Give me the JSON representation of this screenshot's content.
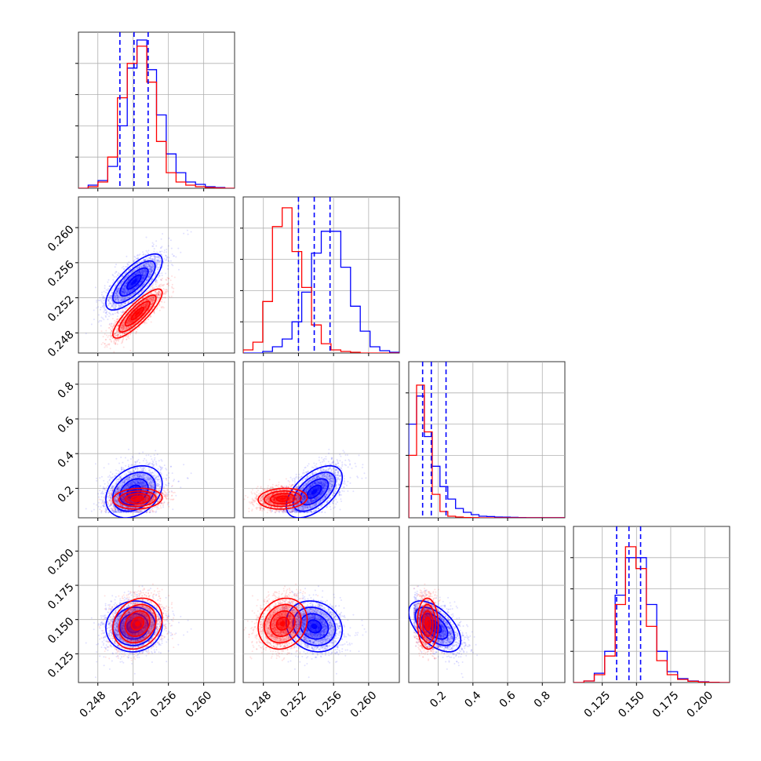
{
  "colors": {
    "blue": "#0000ff",
    "red": "#ff0000",
    "grid": "#b0b0b0",
    "frame": "#333333"
  },
  "chart_data": {
    "type": "corner",
    "grid": true,
    "variables": [
      {
        "range": [
          0.2458,
          0.2635
        ],
        "ticks": [
          0.248,
          0.252,
          0.256,
          0.26
        ],
        "tick_labels": [
          "0.248",
          "0.252",
          "0.256",
          "0.260"
        ]
      },
      {
        "range": [
          0.2457,
          0.2635
        ],
        "ticks": [
          0.248,
          0.252,
          0.256,
          0.26
        ],
        "tick_labels": [
          "0.248",
          "0.252",
          "0.256",
          "0.260"
        ]
      },
      {
        "range": [
          0.03,
          0.93
        ],
        "ticks": [
          0.2,
          0.4,
          0.6,
          0.8
        ],
        "tick_labels": [
          "0.2",
          "0.4",
          "0.6",
          "0.8"
        ]
      },
      {
        "range": [
          0.104,
          0.218
        ],
        "ticks": [
          0.125,
          0.15,
          0.175,
          0.2
        ],
        "tick_labels": [
          "0.125",
          "0.150",
          "0.175",
          "0.200"
        ]
      }
    ],
    "series": [
      {
        "color": "blue",
        "mean": [
          0.2521,
          0.2538,
          0.18,
          0.145
        ],
        "sd": [
          0.0016,
          0.0016,
          0.075,
          0.0093
        ],
        "quantiles": [
          [
            0.2505,
            0.2521,
            0.2537
          ],
          [
            0.252,
            0.2538,
            0.2556
          ],
          [
            0.11,
            0.16,
            0.245
          ],
          [
            0.1355,
            0.1445,
            0.153
          ]
        ],
        "correlations": [
          [
            1,
            0.75,
            0.3,
            0.05
          ],
          [
            0.75,
            1,
            0.55,
            -0.15
          ],
          [
            0.3,
            0.55,
            1,
            -0.55
          ],
          [
            0.05,
            -0.15,
            -0.55,
            1
          ]
        ],
        "histograms": [
          [
            0,
            0.02,
            0.05,
            0.14,
            0.4,
            0.77,
            0.95,
            0.76,
            0.47,
            0.22,
            0.1,
            0.04,
            0.025,
            0.01,
            0.005,
            0
          ],
          [
            0,
            0,
            0.01,
            0.04,
            0.09,
            0.2,
            0.39,
            0.64,
            0.78,
            0.78,
            0.55,
            0.3,
            0.14,
            0.04,
            0.015,
            0.005
          ],
          [
            0.6,
            0.78,
            0.52,
            0.33,
            0.2,
            0.12,
            0.06,
            0.035,
            0.02,
            0.01,
            0.008,
            0.005,
            0.004,
            0.003,
            0.002,
            0.001,
            0.001,
            0.001,
            0.001,
            0.001
          ],
          [
            0,
            0.01,
            0.06,
            0.2,
            0.56,
            0.8,
            0.8,
            0.5,
            0.2,
            0.07,
            0.025,
            0.01,
            0.005,
            0.002,
            0
          ]
        ]
      },
      {
        "color": "red",
        "mean": [
          0.2525,
          0.2502,
          0.14,
          0.147
        ],
        "sd": [
          0.0014,
          0.0014,
          0.03,
          0.0093
        ],
        "quantiles": [],
        "correlations": [
          [
            1,
            0.85,
            0.1,
            0.2
          ],
          [
            0.85,
            1,
            0.1,
            0.15
          ],
          [
            0.1,
            0.1,
            1,
            -0.05
          ],
          [
            0.2,
            0.15,
            -0.05,
            1
          ]
        ],
        "histograms": [
          [
            0,
            0.01,
            0.04,
            0.2,
            0.58,
            0.8,
            0.91,
            0.68,
            0.3,
            0.1,
            0.04,
            0.02,
            0.01,
            0.005,
            0.002,
            0
          ],
          [
            0.02,
            0.07,
            0.33,
            0.81,
            0.93,
            0.65,
            0.42,
            0.18,
            0.06,
            0.02,
            0.01,
            0.005,
            0,
            0,
            0,
            0
          ],
          [
            0.4,
            0.85,
            0.55,
            0.15,
            0.04,
            0.01,
            0.005,
            0.002,
            0.001,
            0,
            0,
            0,
            0,
            0,
            0,
            0,
            0,
            0,
            0,
            0
          ],
          [
            0,
            0.01,
            0.05,
            0.17,
            0.5,
            0.87,
            0.73,
            0.36,
            0.14,
            0.05,
            0.02,
            0.008,
            0.003,
            0.001,
            0
          ]
        ]
      }
    ]
  }
}
